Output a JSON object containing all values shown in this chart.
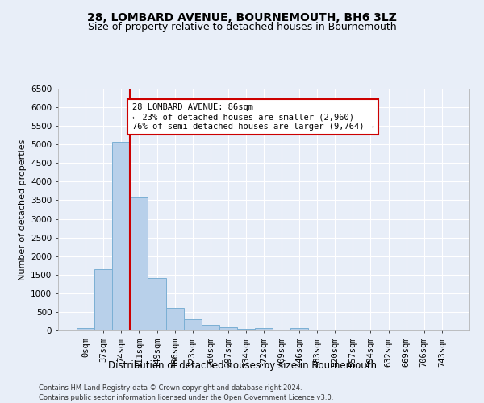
{
  "title": "28, LOMBARD AVENUE, BOURNEMOUTH, BH6 3LZ",
  "subtitle": "Size of property relative to detached houses in Bournemouth",
  "xlabel": "Distribution of detached houses by size in Bournemouth",
  "ylabel": "Number of detached properties",
  "footer_line1": "Contains HM Land Registry data © Crown copyright and database right 2024.",
  "footer_line2": "Contains public sector information licensed under the Open Government Licence v3.0.",
  "bar_labels": [
    "0sqm",
    "37sqm",
    "74sqm",
    "111sqm",
    "149sqm",
    "186sqm",
    "223sqm",
    "260sqm",
    "297sqm",
    "334sqm",
    "372sqm",
    "409sqm",
    "446sqm",
    "483sqm",
    "520sqm",
    "557sqm",
    "594sqm",
    "632sqm",
    "669sqm",
    "706sqm",
    "743sqm"
  ],
  "bar_values": [
    75,
    1640,
    5080,
    3580,
    1400,
    610,
    305,
    150,
    80,
    50,
    65,
    0,
    65,
    0,
    0,
    0,
    0,
    0,
    0,
    0,
    0
  ],
  "bar_color": "#b8d0ea",
  "bar_edge_color": "#7bafd4",
  "ylim": [
    0,
    6500
  ],
  "yticks": [
    0,
    500,
    1000,
    1500,
    2000,
    2500,
    3000,
    3500,
    4000,
    4500,
    5000,
    5500,
    6000,
    6500
  ],
  "vline_x": 2.5,
  "vline_color": "#cc0000",
  "annotation_title": "28 LOMBARD AVENUE: 86sqm",
  "annotation_line1": "← 23% of detached houses are smaller (2,960)",
  "annotation_line2": "76% of semi-detached houses are larger (9,764) →",
  "annotation_box_edge_color": "#cc0000",
  "background_color": "#e8eef8",
  "grid_color": "#ffffff",
  "title_fontsize": 10,
  "subtitle_fontsize": 9,
  "xlabel_fontsize": 8.5,
  "ylabel_fontsize": 8,
  "tick_fontsize": 7.5,
  "annotation_fontsize": 7.5
}
